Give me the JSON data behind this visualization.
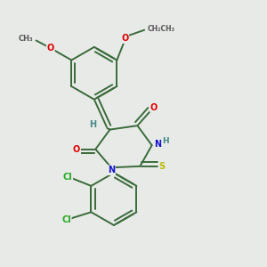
{
  "background_color": "#e8eae8",
  "bond_color": "#3a6b3a",
  "bond_width": 1.4,
  "atom_colors": {
    "O": "#dd0000",
    "N": "#1111cc",
    "S": "#bbbb00",
    "Cl": "#22aa22",
    "H": "#448888",
    "C_gray": "#555555"
  },
  "font_size": 7.0,
  "figsize": [
    3.0,
    3.0
  ],
  "dpi": 100
}
